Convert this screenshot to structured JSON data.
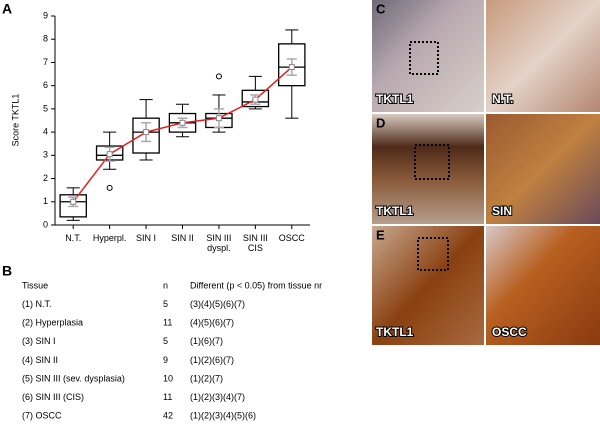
{
  "chart_data": {
    "type": "box",
    "panel_label": "A",
    "y_label": "Score TKTL1",
    "categories": [
      "N.T.",
      "Hyperpl.",
      "SIN I",
      "SIN II",
      "SIN III\ndyspl.",
      "SIN III\nCIS",
      "OSCC"
    ],
    "boxes": [
      {
        "min": 0.2,
        "q1": 0.35,
        "median": 1.0,
        "q3": 1.3,
        "max": 1.6,
        "mean": 1.0,
        "mean_error": 0.2,
        "outliers": []
      },
      {
        "min": 2.4,
        "q1": 2.8,
        "median": 3.0,
        "q3": 3.4,
        "max": 4.0,
        "mean": 3.05,
        "mean_error": 0.3,
        "outliers": [
          1.6
        ]
      },
      {
        "min": 2.8,
        "q1": 3.1,
        "median": 4.0,
        "q3": 4.6,
        "max": 5.4,
        "mean": 4.0,
        "mean_error": 0.4,
        "outliers": []
      },
      {
        "min": 3.8,
        "q1": 4.0,
        "median": 4.4,
        "q3": 4.8,
        "max": 5.2,
        "mean": 4.4,
        "mean_error": 0.2,
        "outliers": []
      },
      {
        "min": 4.0,
        "q1": 4.2,
        "median": 4.6,
        "q3": 4.8,
        "max": 5.6,
        "mean": 4.6,
        "mean_error": 0.4,
        "outliers": [
          6.4
        ]
      },
      {
        "min": 5.0,
        "q1": 5.1,
        "median": 5.3,
        "q3": 5.8,
        "max": 6.4,
        "mean": 5.4,
        "mean_error": 0.2,
        "outliers": []
      },
      {
        "min": 4.6,
        "q1": 6.0,
        "median": 6.8,
        "q3": 7.8,
        "max": 8.4,
        "mean": 6.8,
        "mean_error": 0.35,
        "outliers": []
      }
    ],
    "mean_line_color": "#e02020",
    "error_color": "#aaaaaa",
    "ylim": [
      0,
      9
    ],
    "yticks": [
      0,
      1,
      2,
      3,
      4,
      5,
      6,
      7,
      8,
      9
    ]
  },
  "table": {
    "panel_label": "B",
    "header": [
      "Tissue",
      "n",
      "Different (p < 0.05) from tissue nr"
    ],
    "rows": [
      [
        "(1) N.T.",
        "5",
        "(3)(4)(5)(6)(7)"
      ],
      [
        "(2) Hyperplasia",
        "11",
        "(4)(5)(6)(7)"
      ],
      [
        "(3) SIN I",
        "5",
        "(1)(6)(7)"
      ],
      [
        "(4) SIN II",
        "9",
        "(1)(2)(6)(7)"
      ],
      [
        "(5) SIN III (sev. dysplasia)",
        "10",
        "(1)(2)(7)"
      ],
      [
        "(6) SIN III (CIS)",
        "11",
        "(1)(2)(3)(4)(7)"
      ],
      [
        "(7) OSCC",
        "42",
        "(1)(2)(3)(4)(5)(6)"
      ]
    ]
  },
  "images": [
    {
      "panel_label": "C",
      "left_label": "TKTL1",
      "right_label": "N.T."
    },
    {
      "panel_label": "D",
      "left_label": "TKTL1",
      "right_label": "SIN"
    },
    {
      "panel_label": "E",
      "left_label": "TKTL1",
      "right_label": "OSCC"
    }
  ]
}
